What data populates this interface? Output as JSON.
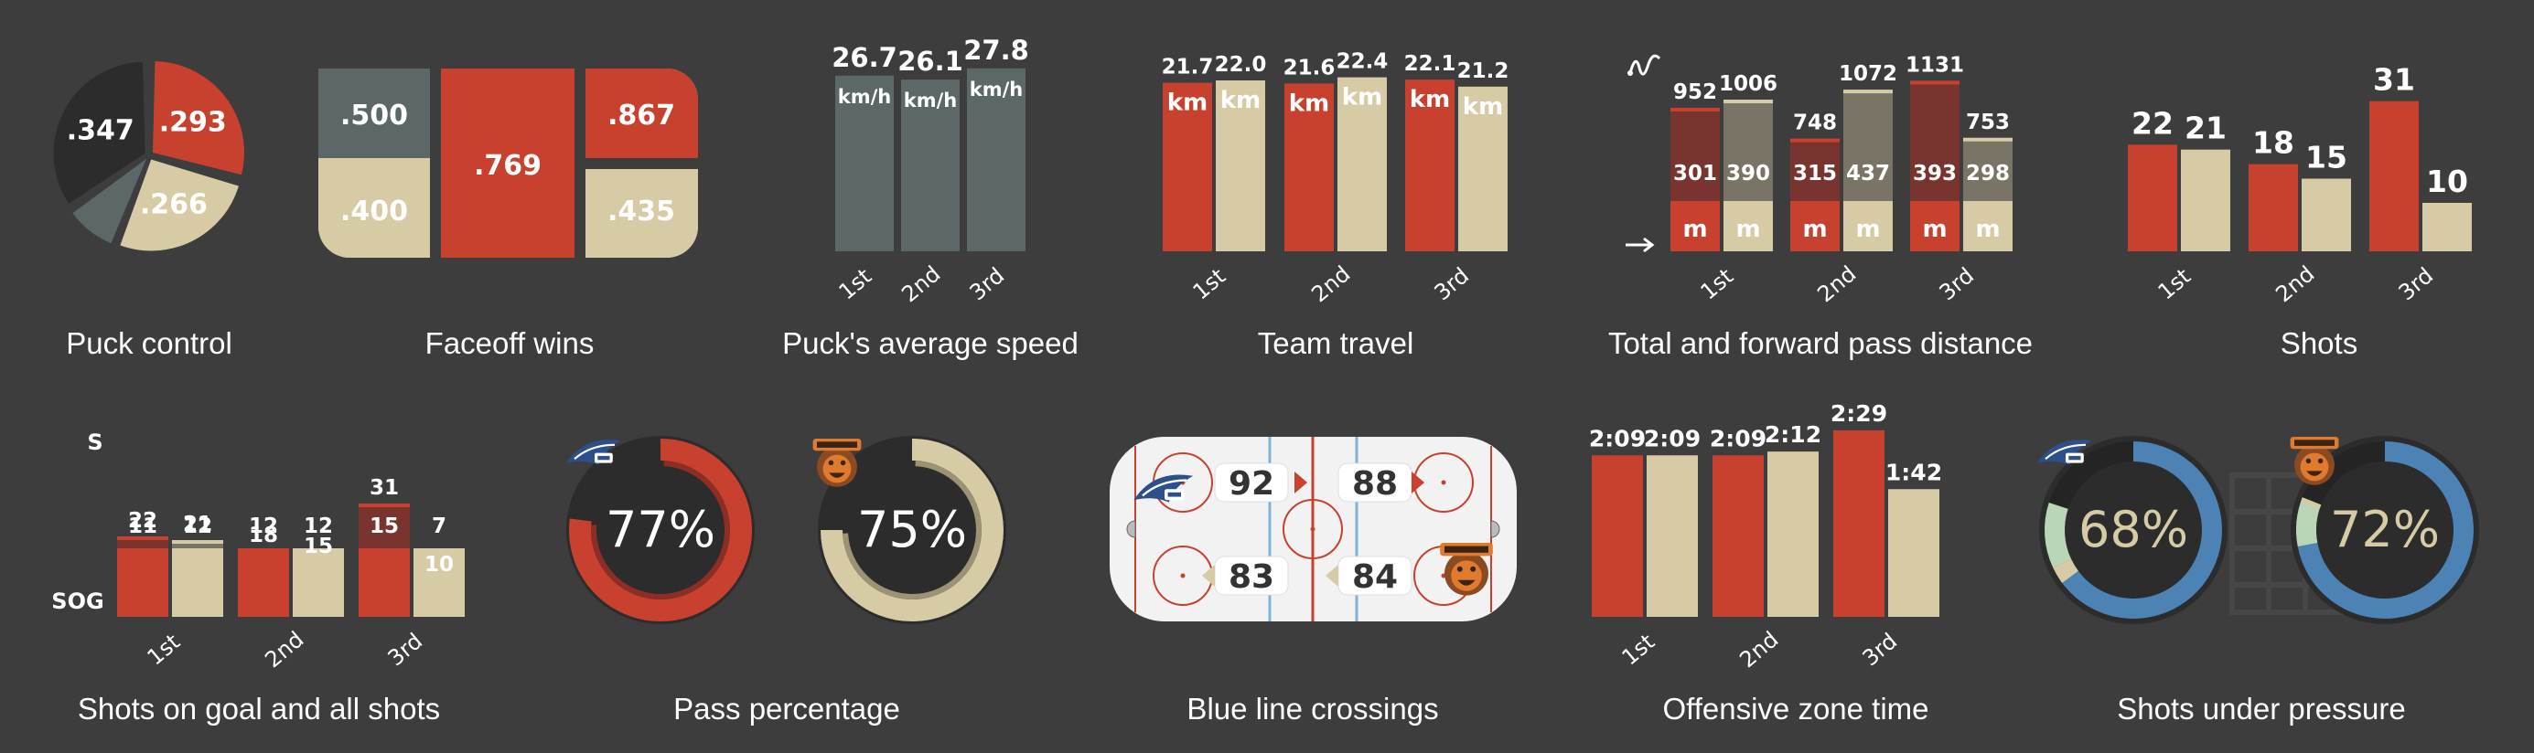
{
  "colors": {
    "background": "#3d3d3d",
    "red": "#c8412f",
    "cream": "#d6cba4",
    "gray": "#5c6768",
    "dark": "#2c2c2c",
    "dark_red": "#7a3430",
    "dark_cream": "#7a7467",
    "blue": "#4d82b5",
    "green_light": "#b9d6b7",
    "panel": "#f2f2f2",
    "panel_line_red": "#c8412f",
    "panel_line_blue": "#7fb3d9"
  },
  "captions": {
    "puck_control": "Puck control",
    "faceoff_wins": "Faceoff wins",
    "puck_speed": "Puck's average speed",
    "team_travel": "Team travel",
    "pass_distance": "Total and forward pass distance",
    "shots": "Shots",
    "shots_on_goal": "Shots on goal and all shots",
    "pass_percentage": "Pass percentage",
    "blue_line": "Blue line crossings",
    "offensive_zone": "Offensive zone time",
    "shots_pressure": "Shots under pressure"
  },
  "icons": {
    "wild_wings_logo": "wild-wings-logo",
    "grizzlys_logo": "grizzlys-logo",
    "pass_curve": "pass-curve-icon",
    "forward_arrow": "forward-arrow-icon",
    "goal_net": "goal-net-icon"
  },
  "chart_data": [
    {
      "id": "puck_control",
      "type": "pie",
      "slices": [
        {
          "label": ".293",
          "value": 0.293,
          "color": "#c8412f"
        },
        {
          "label": ".266",
          "value": 0.266,
          "color": "#d6cba4"
        },
        {
          "label": "",
          "value": 0.094,
          "color": "#5c6768"
        },
        {
          "label": ".347",
          "value": 0.347,
          "color": "#2c2c2c"
        }
      ]
    },
    {
      "id": "faceoff_wins",
      "type": "table",
      "cells": {
        "left_top": ".500",
        "left_bottom": ".400",
        "center": ".769",
        "right_top": ".867",
        "right_bottom": ".435"
      }
    },
    {
      "id": "puck_speed",
      "type": "bar",
      "categories": [
        "1st",
        "2nd",
        "3rd"
      ],
      "values": [
        26.7,
        26.1,
        27.8
      ],
      "value_labels": [
        "26.7",
        "26.1",
        "27.8"
      ],
      "unit": "km/h"
    },
    {
      "id": "team_travel",
      "type": "bar",
      "categories": [
        "1st",
        "2nd",
        "3rd"
      ],
      "unit": "km",
      "series": [
        {
          "values": [
            21.7,
            21.6,
            22.1
          ],
          "value_labels": [
            "21.7",
            "21.6",
            "22.1"
          ]
        },
        {
          "values": [
            22.0,
            22.4,
            21.2
          ],
          "value_labels": [
            "22.0",
            "22.4",
            "21.2"
          ]
        }
      ]
    },
    {
      "id": "pass_distance",
      "type": "bar",
      "categories": [
        "1st",
        "2nd",
        "3rd"
      ],
      "unit": "m",
      "series": [
        {
          "total": [
            952,
            748,
            1131
          ],
          "forward": [
            301,
            315,
            393
          ]
        },
        {
          "total": [
            1006,
            1072,
            753
          ],
          "forward": [
            390,
            437,
            298
          ]
        }
      ]
    },
    {
      "id": "shots",
      "type": "bar",
      "categories": [
        "1st",
        "2nd",
        "3rd"
      ],
      "series": [
        {
          "values": [
            22,
            18,
            31
          ]
        },
        {
          "values": [
            21,
            15,
            10
          ]
        }
      ]
    },
    {
      "id": "shots_on_goal",
      "type": "bar",
      "categories": [
        "1st",
        "2nd",
        "3rd"
      ],
      "row_labels": {
        "shots": "S",
        "sog": "SOG"
      },
      "series": [
        {
          "shots": [
            22,
            18,
            31
          ],
          "sog": [
            11,
            12,
            15
          ]
        },
        {
          "shots": [
            21,
            15,
            10
          ],
          "sog": [
            12,
            12,
            7
          ]
        }
      ]
    },
    {
      "id": "pass_percentage",
      "type": "pie",
      "teams": [
        {
          "value": 77,
          "label": "77%"
        },
        {
          "value": 75,
          "label": "75%"
        }
      ]
    },
    {
      "id": "blue_line",
      "type": "table",
      "values": {
        "top_left": "92",
        "top_right": "88",
        "bottom_left": "83",
        "bottom_right": "84"
      }
    },
    {
      "id": "offensive_zone",
      "type": "bar",
      "categories": [
        "1st",
        "2nd",
        "3rd"
      ],
      "series": [
        {
          "seconds": [
            129,
            129,
            149
          ],
          "labels": [
            "2:09",
            "2:09",
            "2:29"
          ]
        },
        {
          "seconds": [
            129,
            132,
            102
          ],
          "labels": [
            "2:09",
            "2:12",
            "1:42"
          ]
        }
      ]
    },
    {
      "id": "shots_pressure",
      "type": "pie",
      "teams": [
        {
          "value": 68,
          "label": "68%"
        },
        {
          "value": 72,
          "label": "72%"
        }
      ]
    }
  ]
}
